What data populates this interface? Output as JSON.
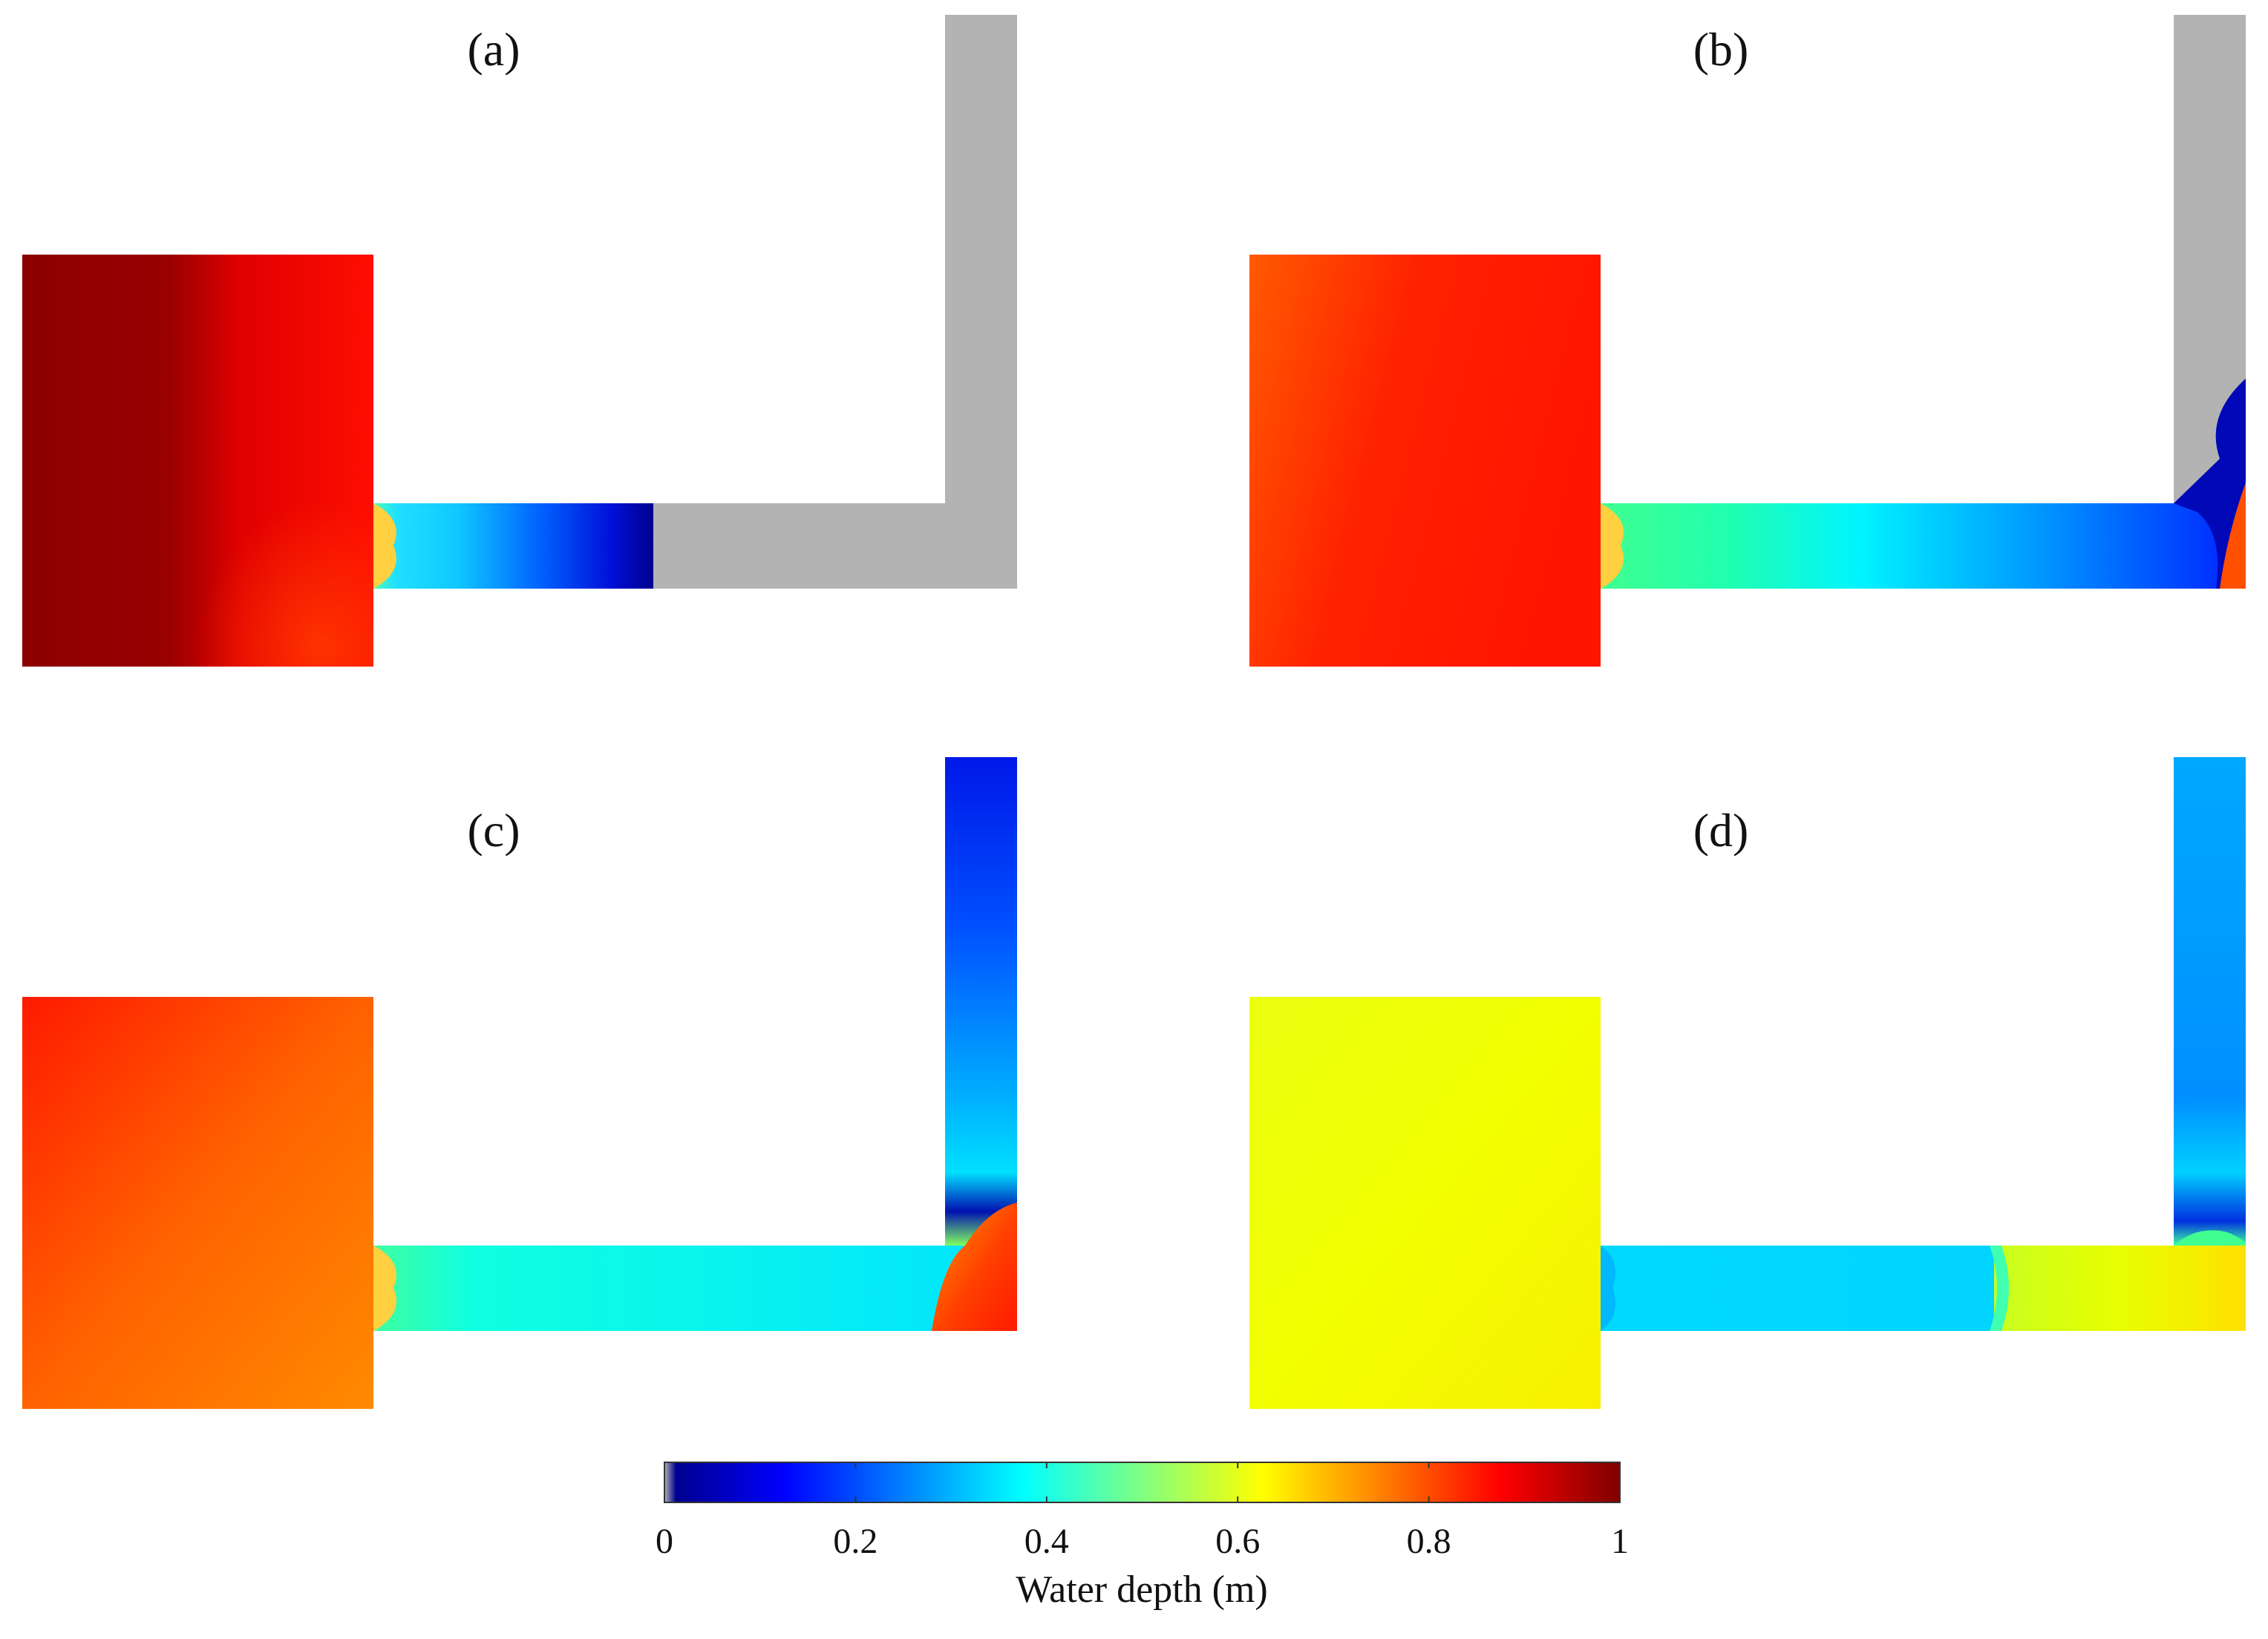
{
  "colors": {
    "dry": "#b3b3b3",
    "jet": [
      "#00008f",
      "#0000ff",
      "#0080ff",
      "#00ffff",
      "#80ff80",
      "#ffff00",
      "#ff8000",
      "#ff0000",
      "#800000"
    ]
  },
  "panels": [
    {
      "label": "(a)",
      "state": "water front midway in horizontal channel; vertical channel dry"
    },
    {
      "label": "(b)",
      "state": "front reaches corner; vertical channel dry"
    },
    {
      "label": "(c)",
      "state": "water rising in vertical channel"
    },
    {
      "label": "(d)",
      "state": "reservoir drained to about 0.6 m"
    }
  ],
  "colorbar": {
    "title": "Water depth (m)",
    "min": 0,
    "max": 1,
    "ticks": [
      {
        "value": 0,
        "label": "0"
      },
      {
        "value": 0.2,
        "label": "0.2"
      },
      {
        "value": 0.4,
        "label": "0.4"
      },
      {
        "value": 0.6,
        "label": "0.6"
      },
      {
        "value": 0.8,
        "label": "0.8"
      },
      {
        "value": 1,
        "label": "1"
      }
    ]
  }
}
